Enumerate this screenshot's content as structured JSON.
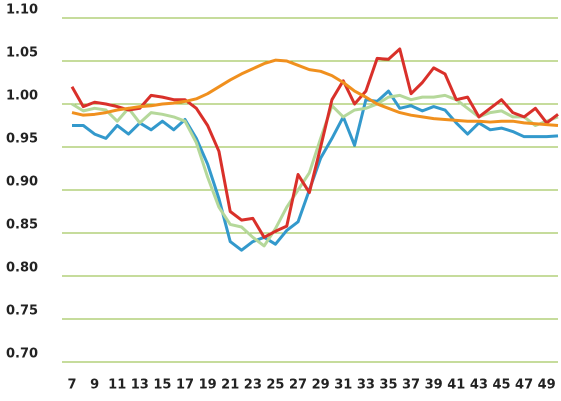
{
  "chart_data": {
    "type": "line",
    "x": [
      7,
      8,
      9,
      10,
      11,
      12,
      13,
      14,
      15,
      16,
      17,
      18,
      19,
      20,
      21,
      22,
      23,
      24,
      25,
      26,
      27,
      28,
      29,
      30,
      31,
      32,
      33,
      34,
      35,
      36,
      37,
      38,
      39,
      40,
      41,
      42,
      43,
      44,
      45,
      46,
      47,
      48,
      49,
      50
    ],
    "series": [
      {
        "color": "#3399cc",
        "values": [
          0.975,
          0.975,
          0.965,
          0.96,
          0.975,
          0.965,
          0.978,
          0.97,
          0.98,
          0.97,
          0.982,
          0.96,
          0.93,
          0.89,
          0.84,
          0.83,
          0.84,
          0.845,
          0.837,
          0.853,
          0.863,
          0.9,
          0.937,
          0.96,
          0.985,
          0.952,
          1.005,
          1.003,
          1.015,
          0.995,
          0.998,
          0.992,
          0.997,
          0.993,
          0.978,
          0.965,
          0.978,
          0.97,
          0.972,
          0.968,
          0.962,
          0.962,
          0.962,
          0.963
        ]
      },
      {
        "color": "#b5d89a",
        "values": [
          1.0,
          0.992,
          0.995,
          0.993,
          0.98,
          0.995,
          0.978,
          0.99,
          0.988,
          0.985,
          0.98,
          0.955,
          0.915,
          0.88,
          0.86,
          0.857,
          0.845,
          0.835,
          0.855,
          0.88,
          0.9,
          0.92,
          0.96,
          0.998,
          0.985,
          0.993,
          0.995,
          1.0,
          1.008,
          1.01,
          1.005,
          1.008,
          1.008,
          1.01,
          1.005,
          0.995,
          0.985,
          0.99,
          0.992,
          0.985,
          0.985,
          0.975,
          0.98,
          0.985
        ]
      },
      {
        "color": "#d9302a",
        "values": [
          1.02,
          0.997,
          1.002,
          1.0,
          0.997,
          0.993,
          0.995,
          1.01,
          1.008,
          1.005,
          1.005,
          0.995,
          0.975,
          0.945,
          0.875,
          0.865,
          0.867,
          0.845,
          0.852,
          0.858,
          0.918,
          0.897,
          0.95,
          1.005,
          1.027,
          1.0,
          1.015,
          1.053,
          1.052,
          1.064,
          1.012,
          1.025,
          1.042,
          1.035,
          1.005,
          1.008,
          0.985,
          0.995,
          1.005,
          0.99,
          0.985,
          0.995,
          0.978,
          0.988
        ]
      },
      {
        "color": "#f0901e",
        "values": [
          0.99,
          0.987,
          0.988,
          0.99,
          0.993,
          0.995,
          0.997,
          0.998,
          1.0,
          1.001,
          1.003,
          1.006,
          1.012,
          1.02,
          1.028,
          1.035,
          1.041,
          1.047,
          1.051,
          1.05,
          1.045,
          1.04,
          1.038,
          1.033,
          1.025,
          1.015,
          1.008,
          1.0,
          0.995,
          0.99,
          0.987,
          0.985,
          0.983,
          0.982,
          0.981,
          0.98,
          0.98,
          0.979,
          0.98,
          0.98,
          0.978,
          0.977,
          0.976,
          0.975
        ]
      }
    ],
    "xlim": [
      7,
      50
    ],
    "xticks": [
      7,
      9,
      11,
      13,
      15,
      17,
      19,
      21,
      23,
      25,
      27,
      29,
      31,
      33,
      35,
      37,
      39,
      41,
      43,
      45,
      47,
      49
    ],
    "ylim": [
      0.7,
      1.1
    ],
    "yticks": [
      {
        "value": 0.7,
        "label": "0.70"
      },
      0.75,
      {
        "value": 0.8,
        "label": "0.80"
      },
      0.85,
      {
        "value": 0.9,
        "label": "0.90"
      },
      0.95,
      {
        "value": 1.0,
        "label": "1.00"
      },
      1.05,
      {
        "value": 1.1,
        "label": "1.10"
      }
    ],
    "grid": true,
    "grid_color": "#8db83a"
  }
}
